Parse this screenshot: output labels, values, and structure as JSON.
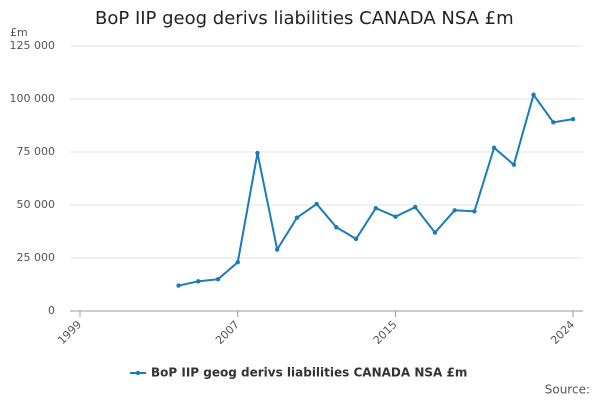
{
  "chart_data": {
    "type": "line",
    "title": "BoP IIP geog derivs liabilities CANADA NSA £m",
    "y_unit": "£m",
    "source": "Source:",
    "x": [
      2004,
      2005,
      2006,
      2007,
      2008,
      2009,
      2010,
      2011,
      2012,
      2013,
      2014,
      2015,
      2016,
      2017,
      2018,
      2019,
      2020,
      2021,
      2022,
      2023,
      2024
    ],
    "series": [
      {
        "name": "BoP IIP geog derivs liabilities CANADA NSA £m",
        "color": "#1a7bb9",
        "values": [
          12000,
          14000,
          15000,
          23000,
          74500,
          29000,
          44000,
          50500,
          39500,
          34000,
          48500,
          44500,
          49000,
          37000,
          47500,
          47000,
          77000,
          69000,
          102000,
          89000,
          90500
        ]
      }
    ],
    "xlim": [
      1999,
      2024
    ],
    "xticks": [
      1999,
      2007,
      2015,
      2024
    ],
    "ylim": [
      0,
      125000
    ],
    "yticks": [
      {
        "value": 0,
        "label": "0"
      },
      {
        "value": 25000,
        "label": "25 000"
      },
      {
        "value": 50000,
        "label": "50 000"
      },
      {
        "value": 75000,
        "label": "75 000"
      },
      {
        "value": 100000,
        "label": "100 000"
      },
      {
        "value": 125000,
        "label": "125 000"
      }
    ],
    "grid": true
  }
}
